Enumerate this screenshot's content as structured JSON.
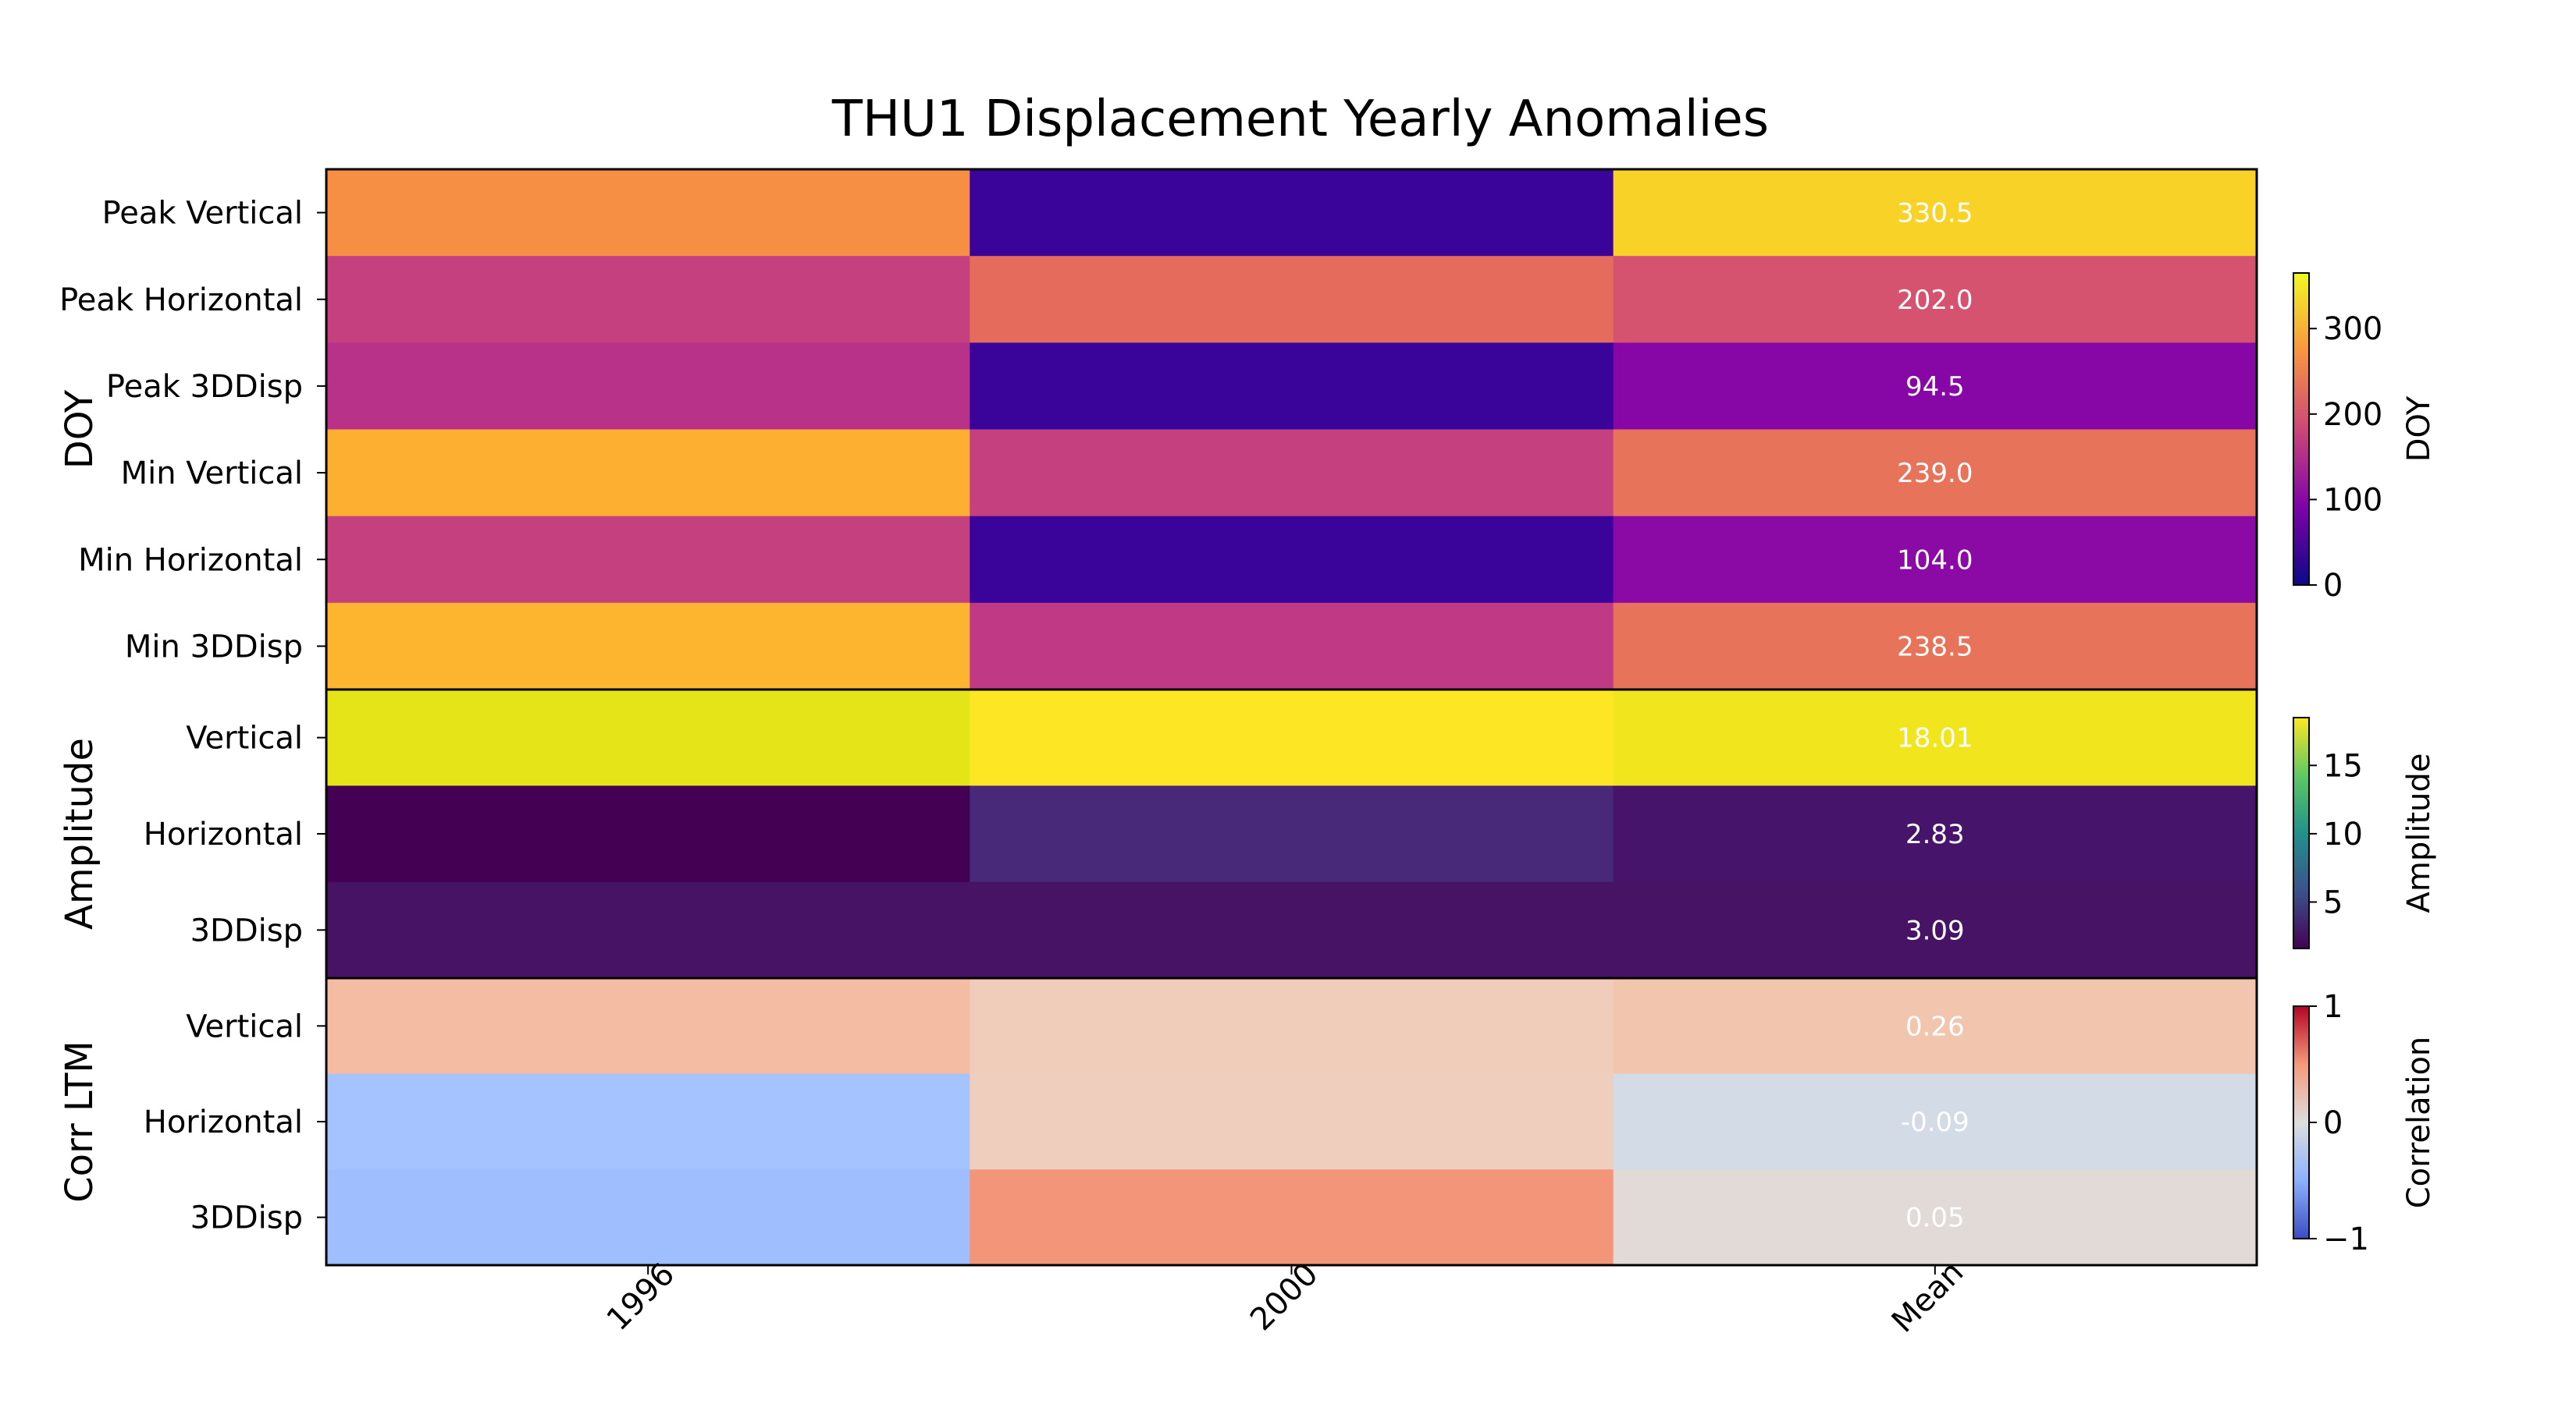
{
  "chart_data": {
    "type": "heatmap",
    "title": "THU1 Displacement Yearly Anomalies",
    "columns": [
      "1996",
      "2000",
      "Mean"
    ],
    "groups": [
      {
        "name": "DOY",
        "colormap": "plasma",
        "colorbar_label": "DOY",
        "range": [
          0,
          365
        ],
        "colorbar_ticks": [
          "0",
          "100",
          "200",
          "300"
        ],
        "rows": [
          {
            "label": "Peak Vertical",
            "values": [
              270,
              20,
              330.5
            ],
            "mean_label": "330.5",
            "colors": [
              "#f68f44",
              "#3a049a",
              "#f8d226"
            ]
          },
          {
            "label": "Peak Horizontal",
            "values": [
              160,
              240,
              202.0
            ],
            "mean_label": "202.0",
            "colors": [
              "#c5407e",
              "#e56b5d",
              "#d5536e"
            ]
          },
          {
            "label": "Peak 3DDisp",
            "values": [
              150,
              20,
              94.5
            ],
            "mean_label": "94.5",
            "colors": [
              "#b83289",
              "#3a049a",
              "#8606a6"
            ]
          },
          {
            "label": "Min Vertical",
            "values": [
              310,
              160,
              239.0
            ],
            "mean_label": "239.0",
            "colors": [
              "#fdaf31",
              "#c5407e",
              "#e8735b"
            ]
          },
          {
            "label": "Min Horizontal",
            "values": [
              160,
              20,
              104.0
            ],
            "mean_label": "104.0",
            "colors": [
              "#c5407e",
              "#3a049a",
              "#8b0aa5"
            ]
          },
          {
            "label": "Min 3DDisp",
            "values": [
              315,
              155,
              238.5
            ],
            "mean_label": "238.5",
            "colors": [
              "#fdb42f",
              "#bf3984",
              "#e8735b"
            ]
          }
        ]
      },
      {
        "name": "Amplitude",
        "colormap": "viridis",
        "colorbar_label": "Amplitude",
        "range": [
          1.6,
          18.5
        ],
        "colorbar_ticks": [
          "5",
          "10",
          "15"
        ],
        "rows": [
          {
            "label": "Vertical",
            "values": [
              17.6,
              18.5,
              18.01
            ],
            "mean_label": "18.01",
            "colors": [
              "#e5e419",
              "#fde725",
              "#f1e51d"
            ]
          },
          {
            "label": "Horizontal",
            "values": [
              1.6,
              4.0,
              2.83
            ],
            "mean_label": "2.83",
            "colors": [
              "#440154",
              "#482878",
              "#46146a"
            ]
          },
          {
            "label": "3DDisp",
            "values": [
              3.1,
              3.1,
              3.09
            ],
            "mean_label": "3.09",
            "colors": [
              "#471365",
              "#471365",
              "#471365"
            ]
          }
        ]
      },
      {
        "name": "Corr LTM",
        "colormap": "coolwarm",
        "colorbar_label": "Correlation",
        "range": [
          -1,
          1
        ],
        "colorbar_ticks": [
          "−1",
          "0",
          "1"
        ],
        "rows": [
          {
            "label": "Vertical",
            "values": [
              0.35,
              0.17,
              0.26
            ],
            "mean_label": "0.26",
            "colors": [
              "#f4bca3",
              "#f0cdbb",
              "#f2c5ae"
            ]
          },
          {
            "label": "Horizontal",
            "values": [
              -0.33,
              0.16,
              -0.09
            ],
            "mean_label": "-0.09",
            "colors": [
              "#a5c3fe",
              "#efcebd",
              "#d3dbe7"
            ]
          },
          {
            "label": "3DDisp",
            "values": [
              -0.38,
              0.5,
              0.05
            ],
            "mean_label": "0.05",
            "colors": [
              "#9ebefd",
              "#f29578",
              "#e1dad6"
            ]
          }
        ]
      }
    ]
  }
}
